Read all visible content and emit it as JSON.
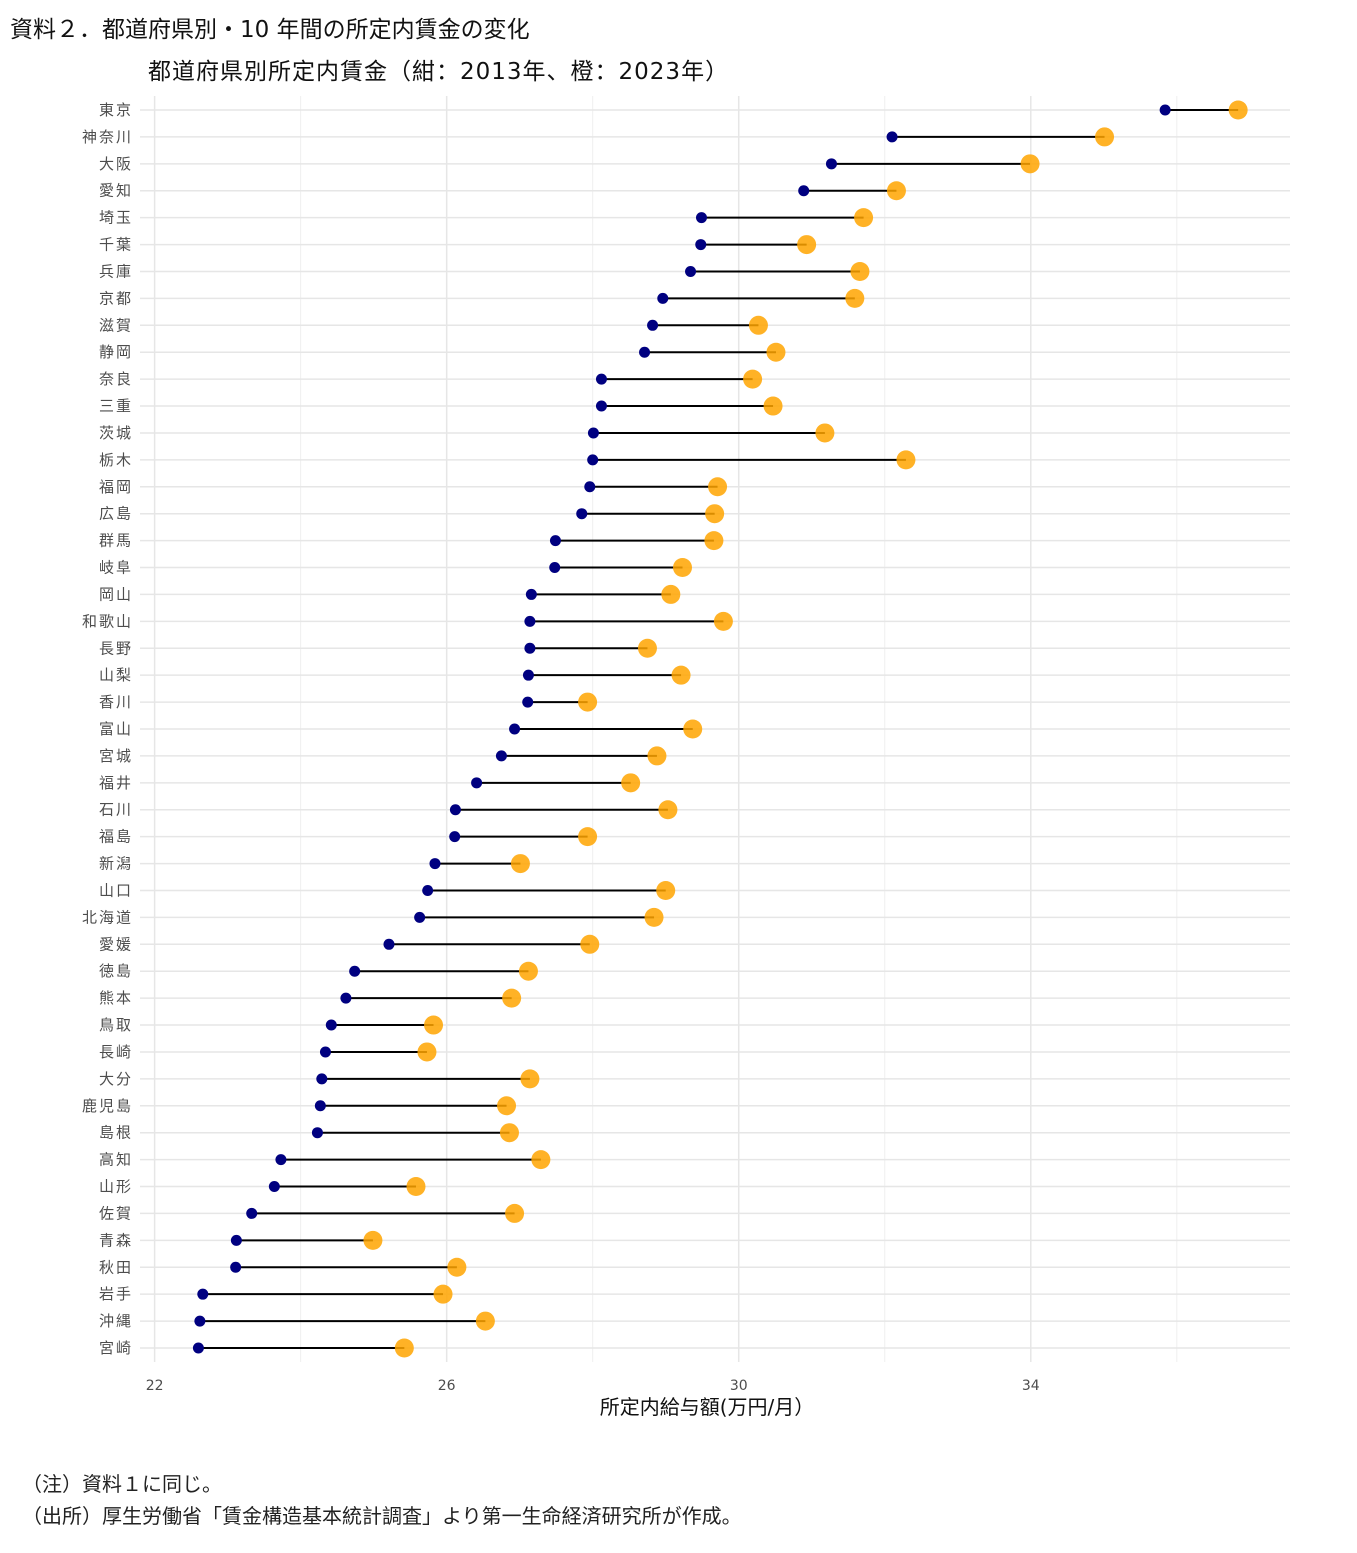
{
  "heading": "資料２．都道府県別・10 年間の所定内賃金の変化",
  "chart_data": {
    "type": "dumbbell",
    "title": "都道府県別所定内賃金（紺：2013年、橙：2023年）",
    "xlabel": "所定内給与額(万円/月）",
    "ylabel": "",
    "xlim": [
      21.8,
      37.55
    ],
    "xticks": [
      22,
      26,
      30,
      34
    ],
    "grid": true,
    "colors": {
      "2013": "#000080",
      "2023": "#FFA500"
    },
    "categories": [
      "東京",
      "神奈川",
      "大阪",
      "愛知",
      "埼玉",
      "千葉",
      "兵庫",
      "京都",
      "滋賀",
      "静岡",
      "奈良",
      "三重",
      "茨城",
      "栃木",
      "福岡",
      "広島",
      "群馬",
      "岐阜",
      "岡山",
      "和歌山",
      "長野",
      "山梨",
      "香川",
      "富山",
      "宮城",
      "福井",
      "石川",
      "福島",
      "新潟",
      "山口",
      "北海道",
      "愛媛",
      "徳島",
      "熊本",
      "鳥取",
      "長崎",
      "大分",
      "鹿児島",
      "島根",
      "高知",
      "山形",
      "佐賀",
      "青森",
      "秋田",
      "岩手",
      "沖縄",
      "宮崎"
    ],
    "series": [
      {
        "name": "2013",
        "values": [
          35.84,
          32.1,
          31.27,
          30.89,
          29.49,
          29.48,
          29.34,
          28.96,
          28.82,
          28.71,
          28.12,
          28.12,
          28.01,
          28.0,
          27.96,
          27.85,
          27.49,
          27.48,
          27.16,
          27.14,
          27.14,
          27.12,
          27.11,
          26.93,
          26.75,
          26.41,
          26.12,
          26.11,
          25.84,
          25.74,
          25.63,
          25.21,
          24.74,
          24.62,
          24.42,
          24.34,
          24.29,
          24.27,
          24.23,
          23.73,
          23.64,
          23.33,
          23.12,
          23.11,
          22.66,
          22.62,
          22.6
        ]
      },
      {
        "name": "2023",
        "values": [
          36.84,
          35.01,
          33.99,
          32.16,
          31.71,
          30.93,
          31.66,
          31.59,
          30.27,
          30.51,
          30.19,
          30.47,
          31.18,
          32.29,
          29.71,
          29.67,
          29.66,
          29.23,
          29.07,
          29.79,
          28.75,
          29.21,
          27.93,
          29.37,
          28.88,
          28.52,
          29.03,
          27.93,
          27.01,
          29.0,
          28.84,
          27.96,
          27.12,
          26.89,
          25.82,
          25.73,
          27.14,
          26.82,
          26.86,
          27.29,
          25.58,
          26.93,
          24.99,
          26.14,
          25.95,
          26.53,
          25.42
        ]
      }
    ]
  },
  "notes": [
    "（注）資料１に同じ。",
    "（出所）厚生労働省「賃金構造基本統計調査」より第一生命経済研究所が作成。"
  ]
}
